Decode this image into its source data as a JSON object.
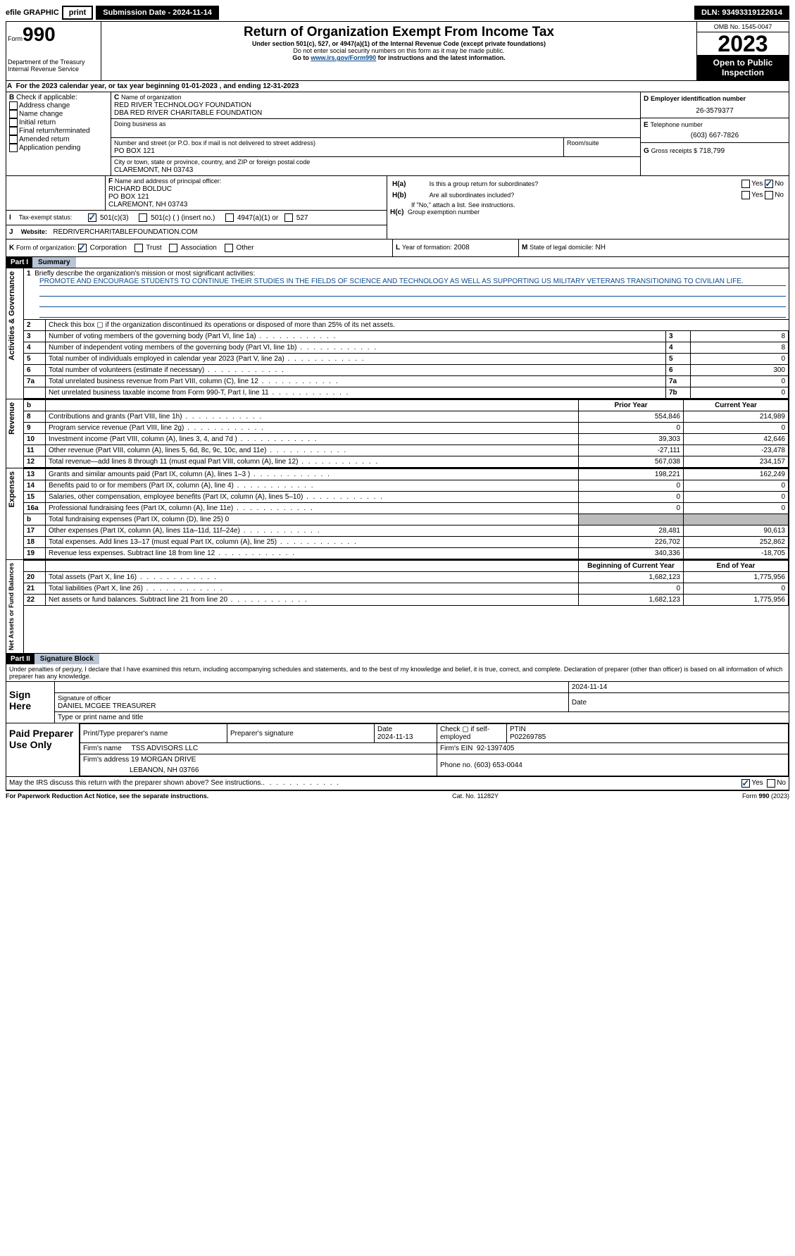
{
  "topbar": {
    "efile": "efile GRAPHIC",
    "print": "print",
    "sub": "Submission Date - 2024-11-14",
    "dln": "DLN: 93493319122614"
  },
  "header": {
    "form": "Form",
    "num": "990",
    "dept": "Department of the Treasury",
    "irs": "Internal Revenue Service",
    "title": "Return of Organization Exempt From Income Tax",
    "sub1": "Under section 501(c), 527, or 4947(a)(1) of the Internal Revenue Code (except private foundations)",
    "sub2": "Do not enter social security numbers on this form as it may be made public.",
    "sub3": "Go to ",
    "sub3link": "www.irs.gov/Form990",
    "sub3b": " for instructions and the latest information.",
    "omb": "OMB No. 1545-0047",
    "year": "2023",
    "open": "Open to Public Inspection"
  },
  "A": {
    "text": "For the 2023 calendar year, or tax year beginning 01-01-2023    , and ending 12-31-2023"
  },
  "B": {
    "label": "B",
    "chk": "Check if applicable:",
    "items": [
      "Address change",
      "Name change",
      "Initial return",
      "Final return/terminated",
      "Amended return",
      "Application pending"
    ]
  },
  "C": {
    "label": "C",
    "namelbl": "Name of organization",
    "name1": "RED RIVER TECHNOLOGY FOUNDATION",
    "name2": "DBA RED RIVER CHARITABLE FOUNDATION",
    "dba": "Doing business as",
    "addrlbl": "Number and street (or P.O. box if mail is not delivered to street address)",
    "addr": "PO BOX 121",
    "roomlbl": "Room/suite",
    "citylbl": "City or town, state or province, country, and ZIP or foreign postal code",
    "city": "CLAREMONT, NH  03743"
  },
  "D": {
    "label": "D",
    "text": "Employer identification number",
    "val": "26-3579377"
  },
  "E": {
    "label": "E",
    "text": "Telephone number",
    "val": "(603) 667-7826"
  },
  "G": {
    "label": "G",
    "text": "Gross receipts $",
    "val": "718,799"
  },
  "F": {
    "label": "F",
    "text": "Name and address of principal officer:",
    "name": "RICHARD BOLDUC",
    "addr": "PO BOX 121",
    "city": "CLAREMONT, NH  03743"
  },
  "H": {
    "a": "Is this a group return for subordinates?",
    "b": "Are all subordinates included?",
    "note": "If \"No,\" attach a list. See instructions.",
    "c": "Group exemption number",
    "yes": "Yes",
    "no": "No"
  },
  "I": {
    "label": "I",
    "text": "Tax-exempt status:",
    "opts": [
      "501(c)(3)",
      "501(c) (  ) (insert no.)",
      "4947(a)(1) or",
      "527"
    ]
  },
  "J": {
    "label": "J",
    "text": "Website:",
    "val": "REDRIVERCHARITABLEFOUNDATION.COM"
  },
  "K": {
    "label": "K",
    "text": "Form of organization:",
    "opts": [
      "Corporation",
      "Trust",
      "Association",
      "Other"
    ]
  },
  "L": {
    "label": "L",
    "text": "Year of formation:",
    "val": "2008"
  },
  "M": {
    "label": "M",
    "text": "State of legal domicile:",
    "val": "NH"
  },
  "part1": {
    "hdr": "Part I",
    "title": "Summary"
  },
  "gov": {
    "label": "Activities & Governance",
    "q1": "Briefly describe the organization's mission or most significant activities:",
    "mission": "PROMOTE AND ENCOURAGE STUDENTS TO CONTINUE THEIR STUDIES IN THE FIELDS OF SCIENCE AND TECHNOLOGY AS WELL AS SUPPORTING US MILITARY VETERANS TRANSITIONING TO CIVILIAN LIFE.",
    "rows": [
      {
        "n": "2",
        "t": "Check this box  ▢  if the organization discontinued its operations or disposed of more than 25% of its net assets."
      },
      {
        "n": "3",
        "t": "Number of voting members of the governing body (Part VI, line 1a)",
        "k": "3",
        "v": "8"
      },
      {
        "n": "4",
        "t": "Number of independent voting members of the governing body (Part VI, line 1b)",
        "k": "4",
        "v": "8"
      },
      {
        "n": "5",
        "t": "Total number of individuals employed in calendar year 2023 (Part V, line 2a)",
        "k": "5",
        "v": "0"
      },
      {
        "n": "6",
        "t": "Total number of volunteers (estimate if necessary)",
        "k": "6",
        "v": "300"
      },
      {
        "n": "7a",
        "t": "Total unrelated business revenue from Part VIII, column (C), line 12",
        "k": "7a",
        "v": "0"
      },
      {
        "n": "",
        "t": "Net unrelated business taxable income from Form 990-T, Part I, line 11",
        "k": "7b",
        "v": "0"
      }
    ]
  },
  "rev": {
    "label": "Revenue",
    "h": "b",
    "hp": "Prior Year",
    "hc": "Current Year",
    "rows": [
      {
        "n": "8",
        "t": "Contributions and grants (Part VIII, line 1h)",
        "p": "554,846",
        "c": "214,989"
      },
      {
        "n": "9",
        "t": "Program service revenue (Part VIII, line 2g)",
        "p": "0",
        "c": "0"
      },
      {
        "n": "10",
        "t": "Investment income (Part VIII, column (A), lines 3, 4, and 7d )",
        "p": "39,303",
        "c": "42,646"
      },
      {
        "n": "11",
        "t": "Other revenue (Part VIII, column (A), lines 5, 6d, 8c, 9c, 10c, and 11e)",
        "p": "-27,111",
        "c": "-23,478"
      },
      {
        "n": "12",
        "t": "Total revenue—add lines 8 through 11 (must equal Part VIII, column (A), line 12)",
        "p": "567,038",
        "c": "234,157"
      }
    ]
  },
  "exp": {
    "label": "Expenses",
    "rows": [
      {
        "n": "13",
        "t": "Grants and similar amounts paid (Part IX, column (A), lines 1–3 )",
        "p": "198,221",
        "c": "162,249"
      },
      {
        "n": "14",
        "t": "Benefits paid to or for members (Part IX, column (A), line 4)",
        "p": "0",
        "c": "0"
      },
      {
        "n": "15",
        "t": "Salaries, other compensation, employee benefits (Part IX, column (A), lines 5–10)",
        "p": "0",
        "c": "0"
      },
      {
        "n": "16a",
        "t": "Professional fundraising fees (Part IX, column (A), line 11e)",
        "p": "0",
        "c": "0"
      },
      {
        "n": "b",
        "t": "Total fundraising expenses (Part IX, column (D), line 25) 0",
        "grey": true
      },
      {
        "n": "17",
        "t": "Other expenses (Part IX, column (A), lines 11a–11d, 11f–24e)",
        "p": "28,481",
        "c": "90,613"
      },
      {
        "n": "18",
        "t": "Total expenses. Add lines 13–17 (must equal Part IX, column (A), line 25)",
        "p": "226,702",
        "c": "252,862"
      },
      {
        "n": "19",
        "t": "Revenue less expenses. Subtract line 18 from line 12",
        "p": "340,336",
        "c": "-18,705"
      }
    ]
  },
  "net": {
    "label": "Net Assets or Fund Balances",
    "hp": "Beginning of Current Year",
    "hc": "End of Year",
    "rows": [
      {
        "n": "20",
        "t": "Total assets (Part X, line 16)",
        "p": "1,682,123",
        "c": "1,775,956"
      },
      {
        "n": "21",
        "t": "Total liabilities (Part X, line 26)",
        "p": "0",
        "c": "0"
      },
      {
        "n": "22",
        "t": "Net assets or fund balances. Subtract line 21 from line 20",
        "p": "1,682,123",
        "c": "1,775,956"
      }
    ]
  },
  "part2": {
    "hdr": "Part II",
    "title": "Signature Block",
    "decl": "Under penalties of perjury, I declare that I have examined this return, including accompanying schedules and statements, and to the best of my knowledge and belief, it is true, correct, and complete. Declaration of preparer (other than officer) is based on all information of which preparer has any knowledge."
  },
  "sign": {
    "here": "Sign Here",
    "date": "2024-11-14",
    "siglbl": "Signature of officer",
    "name": "DANIEL MCGEE  TREASURER",
    "typelbl": "Type or print name and title",
    "datelbl": "Date"
  },
  "paid": {
    "label": "Paid Preparer Use Only",
    "r1": {
      "a": "Print/Type preparer's name",
      "b": "Preparer's signature",
      "c": "Date",
      "cv": "2024-11-13",
      "d": "Check  ▢  if self-employed",
      "e": "PTIN",
      "ev": "P02269785"
    },
    "r2": {
      "a": "Firm's name",
      "av": "TSS ADVISORS LLC",
      "b": "Firm's EIN",
      "bv": "92-1397405"
    },
    "r3": {
      "a": "Firm's address",
      "av": "19 MORGAN DRIVE",
      "b": "Phone no.",
      "bv": "(603) 653-0044",
      "city": "LEBANON, NH  03766"
    }
  },
  "footer": {
    "discuss": "May the IRS discuss this return with the preparer shown above? See instructions.",
    "yes": "Yes",
    "no": "No",
    "pra": "For Paperwork Reduction Act Notice, see the separate instructions.",
    "cat": "Cat. No. 11282Y",
    "form": "Form 990 (2023)"
  }
}
